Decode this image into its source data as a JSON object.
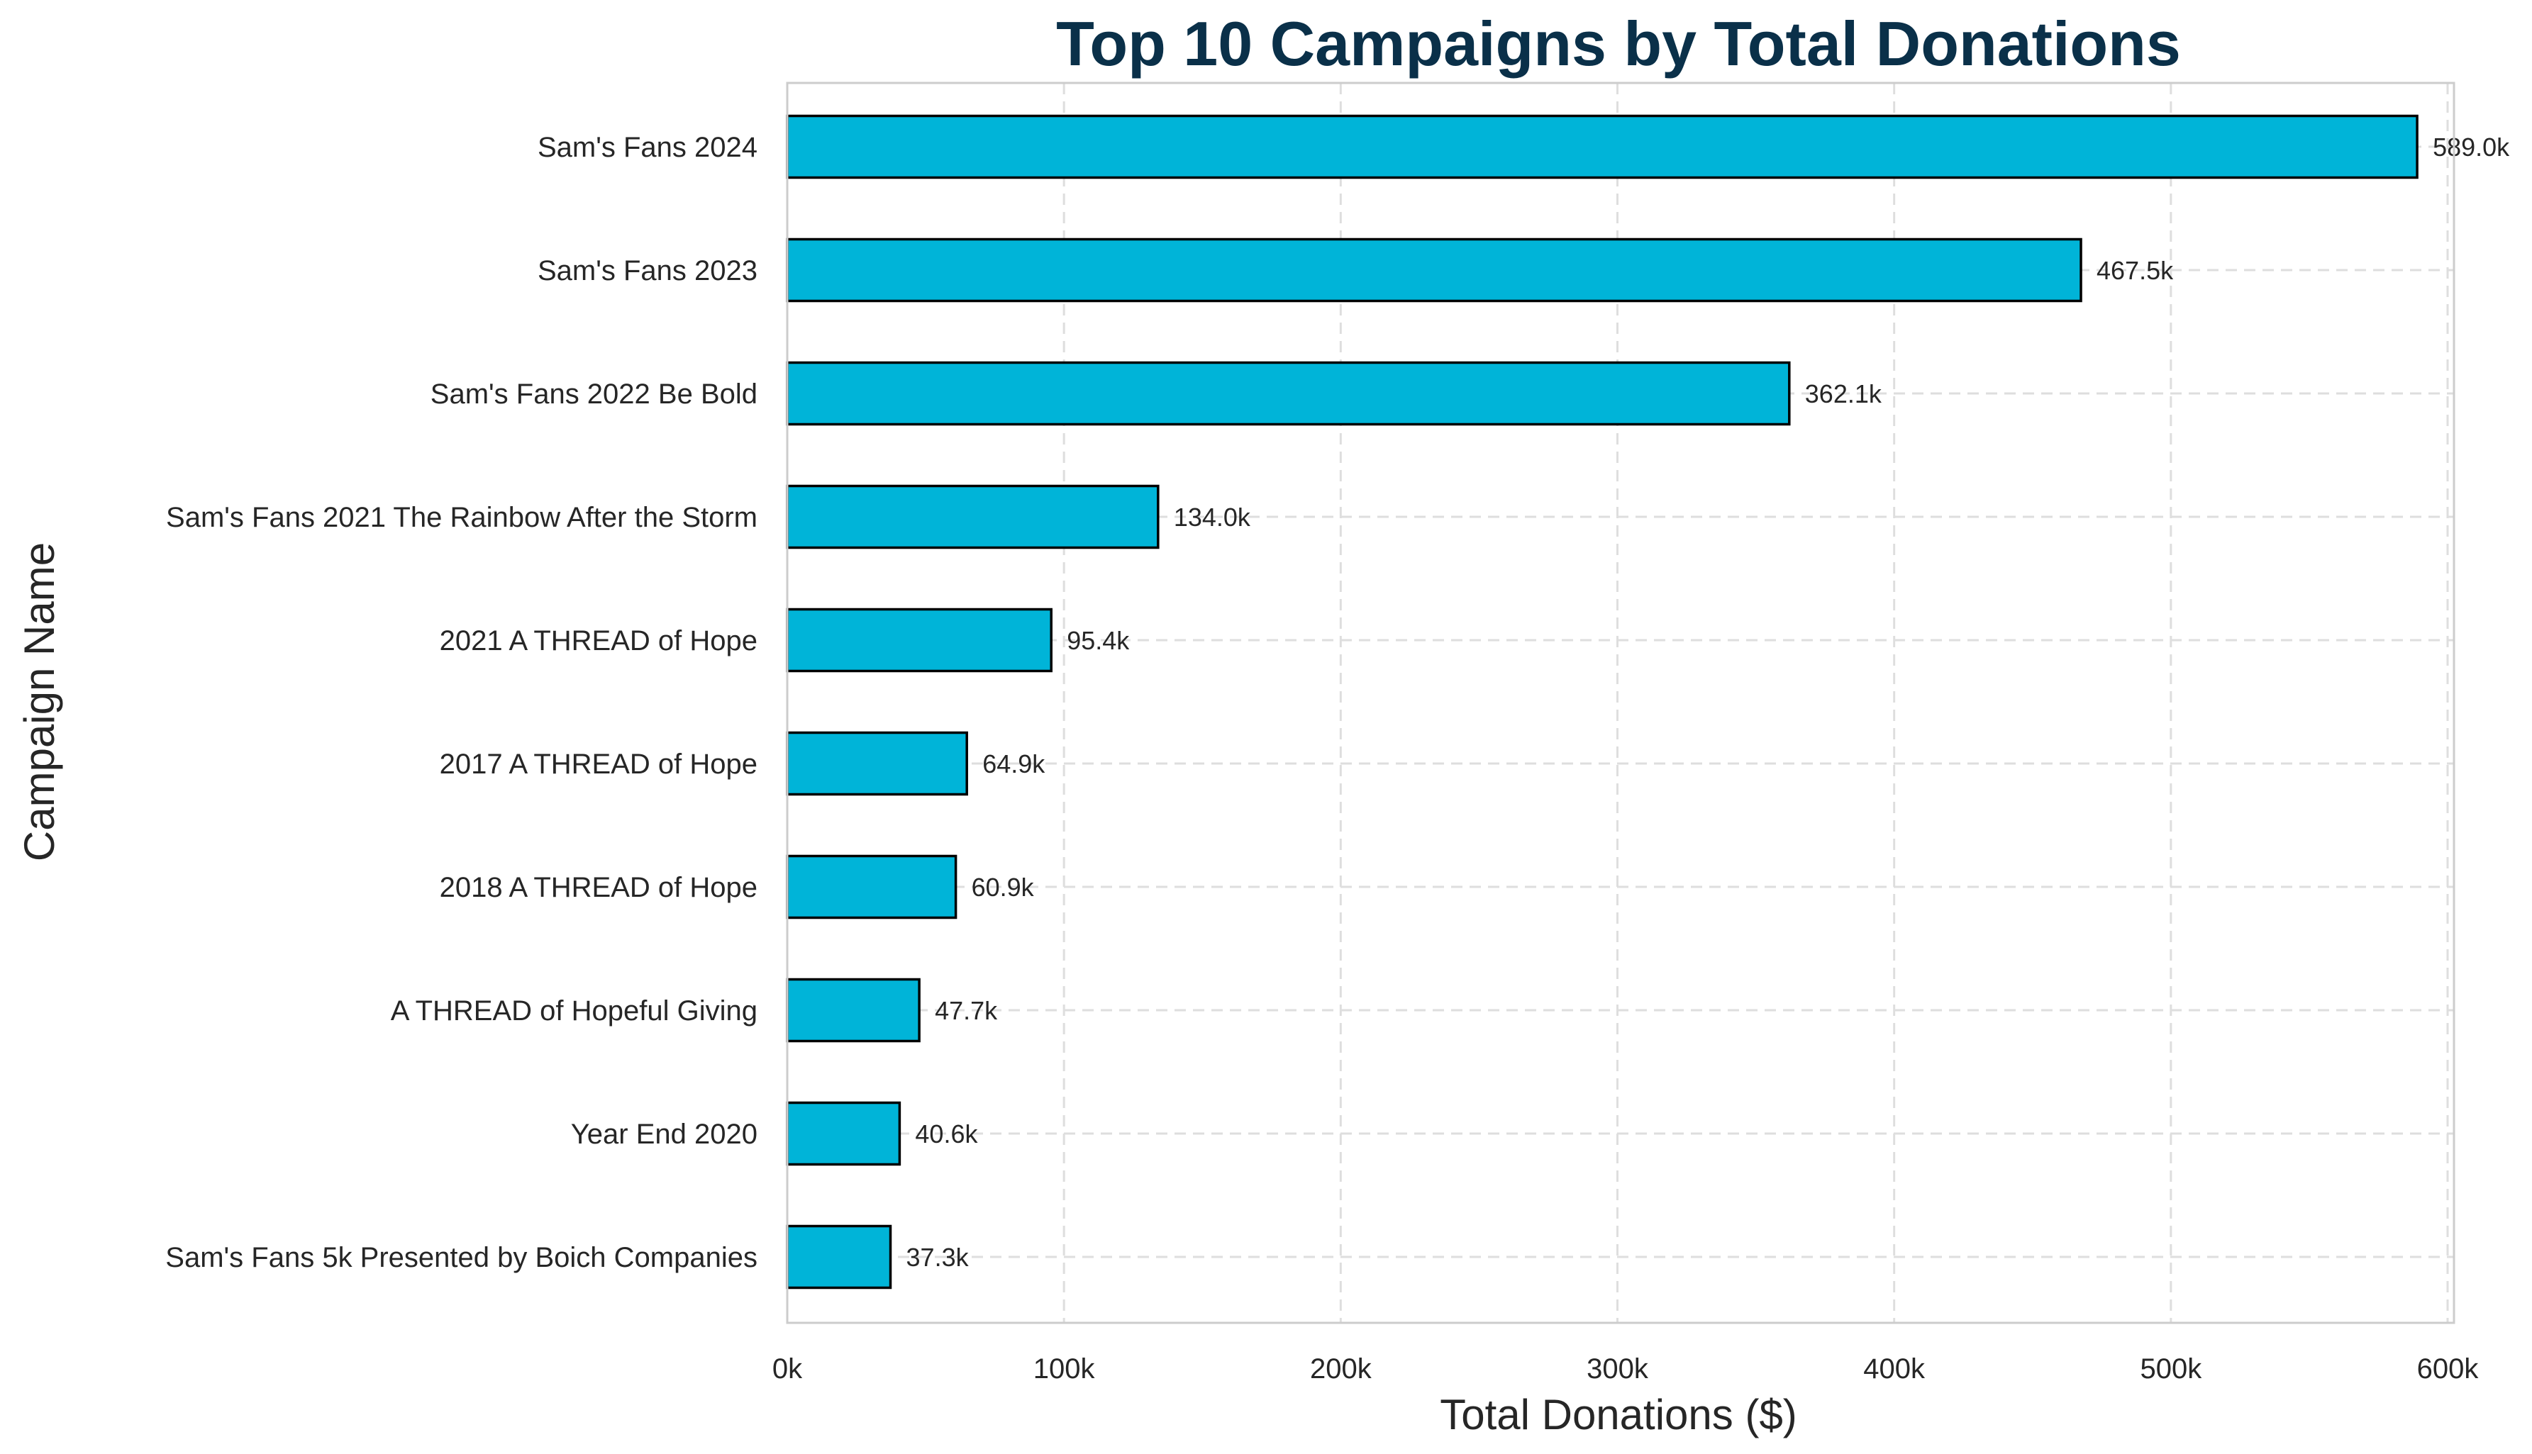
{
  "chart_data": {
    "type": "bar",
    "orientation": "horizontal",
    "title": "Top 10 Campaigns by Total Donations",
    "xlabel": "Total Donations ($)",
    "ylabel": "Campaign Name",
    "categories": [
      "Sam's Fans 2024",
      "Sam's Fans 2023",
      "Sam's Fans 2022 Be Bold",
      "Sam's Fans 2021 The Rainbow After the Storm",
      "2021 A THREAD of Hope",
      "2017 A THREAD of Hope",
      "2018 A THREAD of Hope",
      "A THREAD of Hopeful Giving",
      "Year End 2020",
      "Sam's Fans 5k Presented by Boich Companies"
    ],
    "values": [
      589000,
      467500,
      362100,
      134000,
      95400,
      64900,
      60900,
      47700,
      40600,
      37300
    ],
    "value_labels": [
      "589.0k",
      "467.5k",
      "362.1k",
      "134.0k",
      "95.4k",
      "64.9k",
      "60.9k",
      "47.7k",
      "40.6k",
      "37.3k"
    ],
    "xticks": [
      0,
      100000,
      200000,
      300000,
      400000,
      500000,
      600000
    ],
    "xtick_labels": [
      "0k",
      "100k",
      "200k",
      "300k",
      "400k",
      "500k",
      "600k"
    ],
    "xlim": [
      0,
      618450
    ],
    "grid": true,
    "bar_color": "#00b4d8",
    "bar_edge_color": "#000000",
    "title_color": "#0a3049"
  }
}
